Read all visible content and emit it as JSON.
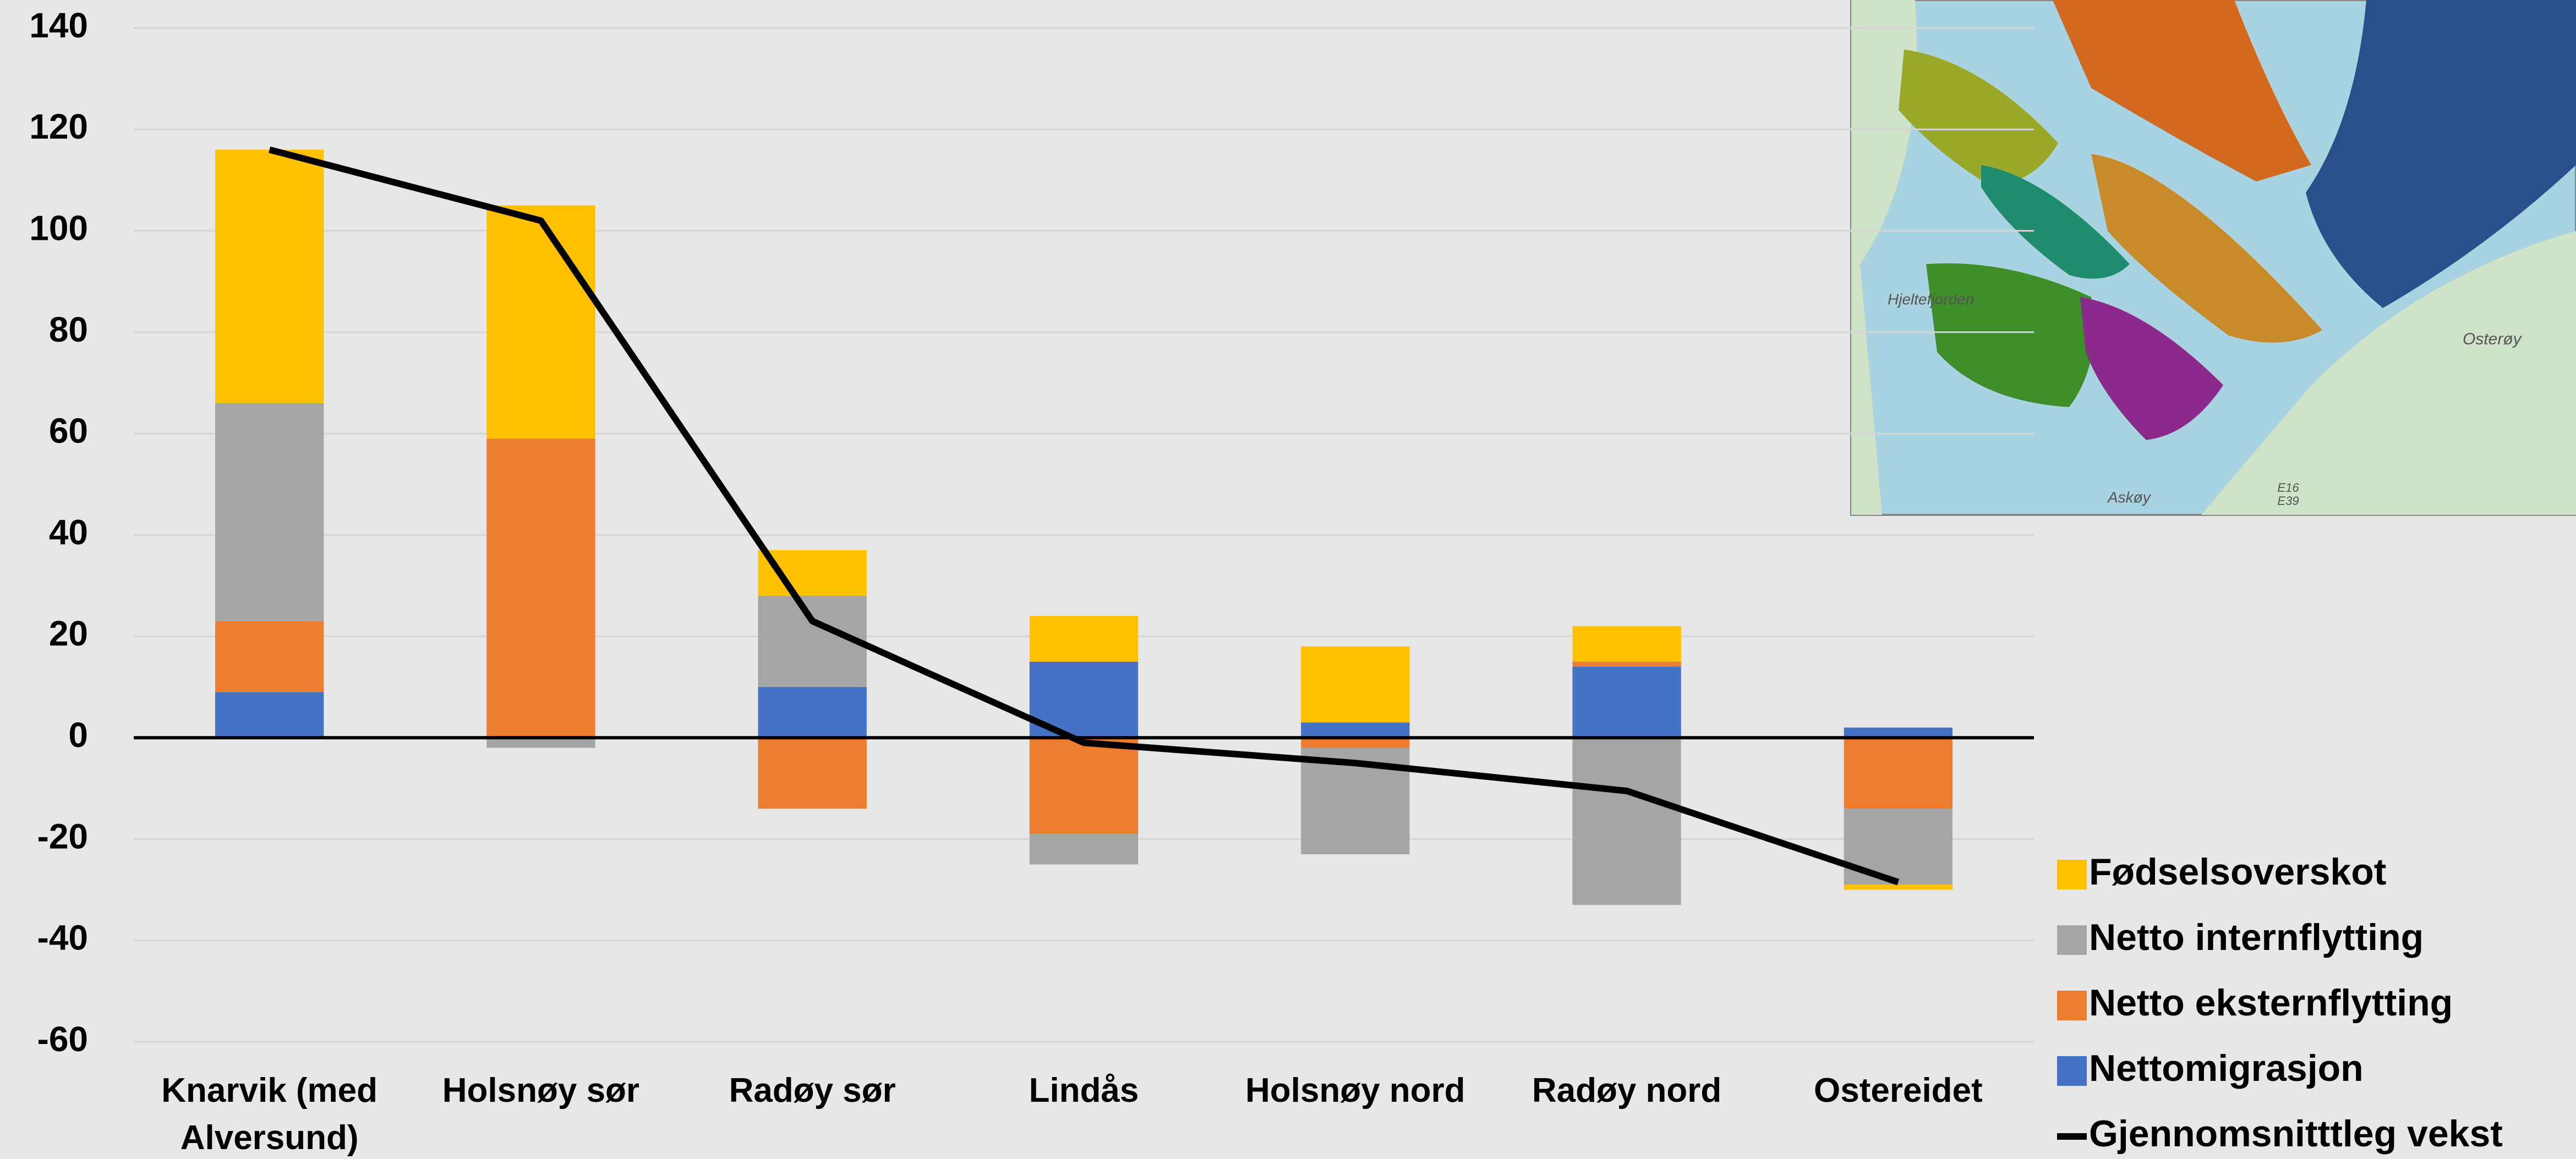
{
  "chart_data": {
    "type": "bar",
    "stacked": true,
    "categories": [
      "Knarvik (med Alversund)",
      "Holsnøy sør",
      "Radøy sør",
      "Lindås",
      "Holsnøy nord",
      "Radøy nord",
      "Ostereidet"
    ],
    "series": [
      {
        "name": "Fødselsoverskot",
        "color": "#FFC000",
        "values": [
          50,
          46,
          9,
          9,
          15,
          7,
          -1
        ]
      },
      {
        "name": "Netto internflytting",
        "color": "#A5A5A5",
        "values": [
          43,
          -2,
          18,
          -6,
          -21,
          -33,
          -15
        ]
      },
      {
        "name": "Netto eksternflytting",
        "color": "#ED7D31",
        "values": [
          14,
          59,
          -14,
          -19,
          -2,
          1,
          -14
        ]
      },
      {
        "name": "Nettomigrasjon",
        "color": "#4472C4",
        "values": [
          9,
          0,
          10,
          15,
          3,
          14,
          2
        ]
      },
      {
        "name": "Gjennomsnitttleg vekst",
        "type": "line",
        "color": "#000000",
        "values": [
          116,
          102,
          23,
          -1,
          -5,
          -10.5,
          -28.5
        ]
      }
    ],
    "ylim": [
      -60,
      140
    ],
    "yticks": [
      -60,
      -40,
      -20,
      0,
      20,
      40,
      60,
      80,
      100,
      120,
      140
    ],
    "grid": true,
    "legend": "bottom-right",
    "map_labels": [
      "Hjeltefjorden",
      "Osterøy",
      "Askøy",
      "E16",
      "E39"
    ]
  }
}
